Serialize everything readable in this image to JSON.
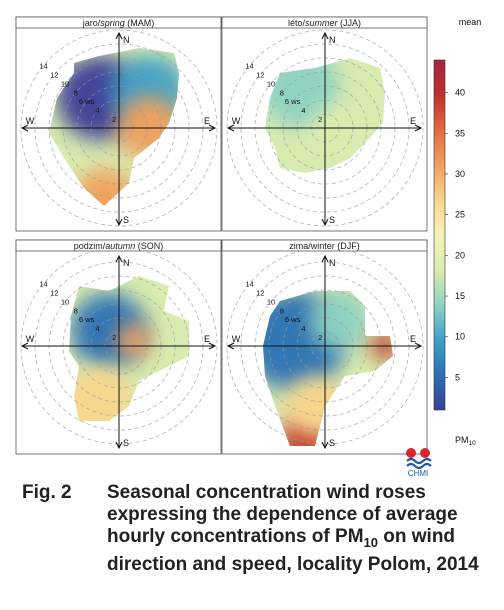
{
  "chart_data": {
    "type": "heatmap",
    "subtype": "polar concentration wind rose",
    "panels": [
      {
        "title": "jaro/",
        "title_it": "spring",
        "title_code": "(MAM)"
      },
      {
        "title": "léto/",
        "title_it": "summer",
        "title_code": "(JJA)"
      },
      {
        "title": "podzim/",
        "title_it": "autumn",
        "title_code": "(SON)"
      },
      {
        "title": "zima/winter ",
        "title_it": "",
        "title_code": "(DJF)"
      }
    ],
    "directions": [
      "N",
      "E",
      "S",
      "W"
    ],
    "radial_ticks": [
      2,
      4,
      6,
      8,
      10,
      12,
      14
    ],
    "radial_unit_label": "ws",
    "radial_max": 15,
    "colorbar": {
      "title": "mean",
      "label_main": "PM",
      "label_sub": "10",
      "range": [
        1,
        44
      ],
      "ticks": [
        5,
        10,
        15,
        20,
        25,
        30,
        35,
        40
      ],
      "colors": [
        "#3a3e98",
        "#2a6fb5",
        "#3fa0c6",
        "#8ed2c2",
        "#d9ecb0",
        "#f7f3b8",
        "#f9d58c",
        "#f2a05c",
        "#e36a3e",
        "#c0302c",
        "#a3253e"
      ]
    },
    "color_legend_meaning": "mean PM10 concentration by wind direction and wind speed"
  },
  "logo": {
    "text": "CHMI"
  },
  "caption": {
    "label": "Fig. 2",
    "text": "Seasonal concentration wind roses expressing the dependence of average hourly concentrations of PM",
    "sub": "10",
    "text_tail": " on wind direction and speed, locality Polom, 2014"
  }
}
